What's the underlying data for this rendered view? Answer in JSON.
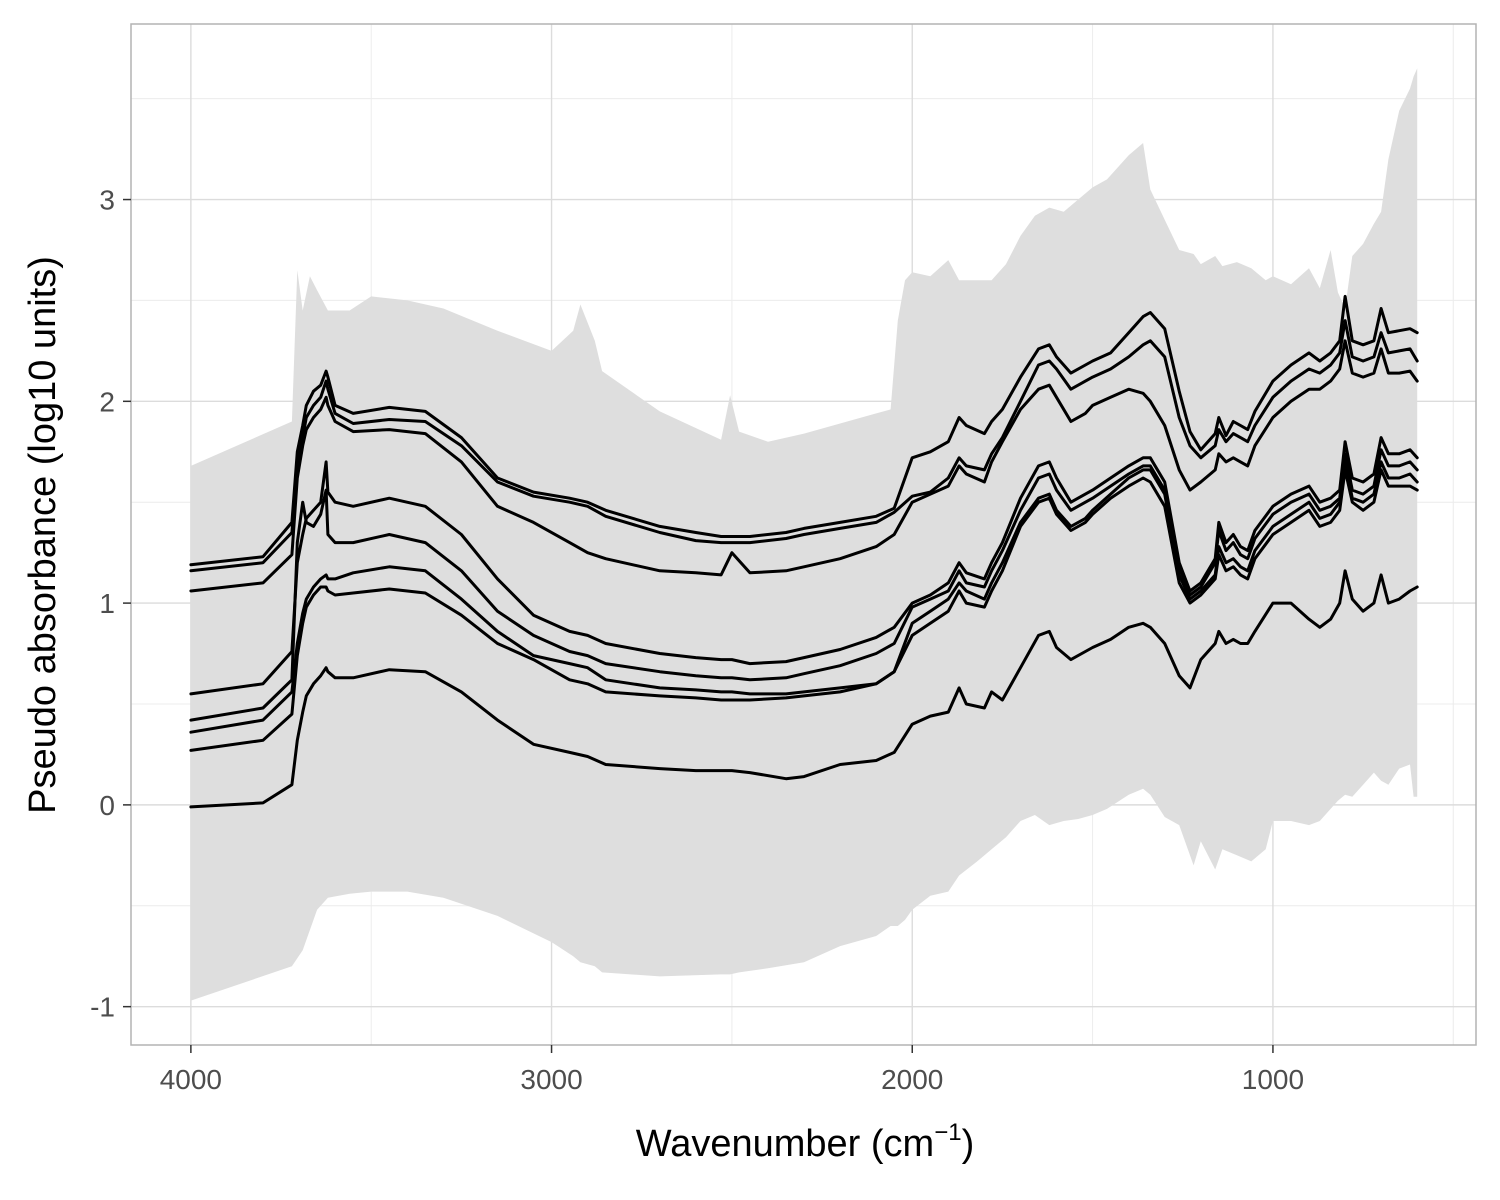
{
  "chart_data": {
    "type": "line",
    "title": "",
    "xlabel": "Wavenumber (cm",
    "xlabel_superscript": "−1",
    "xlabel_close": ")",
    "ylabel": "Pseudo absorbance (log10 units)",
    "xlim": [
      4166,
      437
    ],
    "ylim": [
      -1.19,
      3.87
    ],
    "x_reversed": true,
    "grid": true,
    "legend": "none",
    "x_ticks": [
      {
        "value": 4000,
        "label": "4000"
      },
      {
        "value": 3000,
        "label": "3000"
      },
      {
        "value": 2000,
        "label": "2000"
      },
      {
        "value": 1000,
        "label": "1000"
      }
    ],
    "y_ticks": [
      {
        "value": -1,
        "label": "-1"
      },
      {
        "value": 0,
        "label": "0"
      },
      {
        "value": 1,
        "label": "1"
      },
      {
        "value": 2,
        "label": "2"
      },
      {
        "value": 3,
        "label": "3"
      }
    ],
    "colors": {
      "band": "#dedede",
      "lines": "#000000",
      "panel_border": "#b3b3b3"
    },
    "band": {
      "x": [
        4000,
        3720,
        3705,
        3690,
        3670,
        3650,
        3620,
        3560,
        3500,
        3400,
        3300,
        3150,
        3000,
        2940,
        2920,
        2880,
        2860,
        2700,
        2530,
        2505,
        2480,
        2400,
        2300,
        2200,
        2100,
        2060,
        2040,
        2020,
        2000,
        1950,
        1900,
        1870,
        1820,
        1780,
        1740,
        1700,
        1660,
        1620,
        1580,
        1540,
        1500,
        1460,
        1400,
        1360,
        1340,
        1300,
        1260,
        1220,
        1200,
        1160,
        1140,
        1100,
        1060,
        1020,
        1000,
        950,
        900,
        870,
        840,
        820,
        800,
        780,
        750,
        720,
        700,
        680,
        650,
        620,
        610,
        600
      ],
      "upper": [
        1.68,
        1.9,
        2.65,
        2.45,
        2.62,
        2.55,
        2.45,
        2.45,
        2.52,
        2.5,
        2.46,
        2.35,
        2.25,
        2.35,
        2.48,
        2.3,
        2.15,
        1.95,
        1.81,
        2.03,
        1.85,
        1.8,
        1.84,
        1.89,
        1.94,
        1.96,
        2.4,
        2.6,
        2.64,
        2.62,
        2.7,
        2.6,
        2.6,
        2.6,
        2.68,
        2.82,
        2.92,
        2.96,
        2.94,
        3.0,
        3.06,
        3.1,
        3.22,
        3.28,
        3.05,
        2.9,
        2.75,
        2.73,
        2.68,
        2.72,
        2.67,
        2.69,
        2.66,
        2.6,
        2.62,
        2.58,
        2.66,
        2.56,
        2.75,
        2.54,
        2.46,
        2.72,
        2.78,
        2.88,
        2.94,
        3.2,
        3.44,
        3.55,
        3.61,
        3.65
      ],
      "lower": [
        -0.97,
        -0.8,
        -0.76,
        -0.72,
        -0.62,
        -0.52,
        -0.46,
        -0.44,
        -0.43,
        -0.43,
        -0.46,
        -0.55,
        -0.68,
        -0.75,
        -0.78,
        -0.8,
        -0.83,
        -0.85,
        -0.84,
        -0.84,
        -0.83,
        -0.81,
        -0.78,
        -0.7,
        -0.65,
        -0.6,
        -0.6,
        -0.57,
        -0.52,
        -0.45,
        -0.43,
        -0.35,
        -0.28,
        -0.22,
        -0.16,
        -0.08,
        -0.05,
        -0.1,
        -0.08,
        -0.07,
        -0.05,
        -0.02,
        0.05,
        0.08,
        0.05,
        -0.06,
        -0.1,
        -0.3,
        -0.18,
        -0.32,
        -0.22,
        -0.25,
        -0.28,
        -0.22,
        -0.08,
        -0.08,
        -0.1,
        -0.08,
        -0.02,
        0.02,
        0.05,
        0.04,
        0.1,
        0.16,
        0.12,
        0.1,
        0.18,
        0.2,
        0.04,
        0.04
      ]
    },
    "x": [
      4000,
      3800,
      3720,
      3705,
      3690,
      3680,
      3660,
      3640,
      3625,
      3620,
      3600,
      3550,
      3450,
      3350,
      3250,
      3150,
      3050,
      2950,
      2900,
      2850,
      2700,
      2600,
      2530,
      2500,
      2450,
      2350,
      2300,
      2200,
      2100,
      2050,
      2000,
      1950,
      1900,
      1870,
      1850,
      1800,
      1780,
      1750,
      1700,
      1650,
      1620,
      1600,
      1560,
      1520,
      1500,
      1450,
      1400,
      1360,
      1340,
      1300,
      1260,
      1230,
      1200,
      1160,
      1150,
      1130,
      1110,
      1090,
      1070,
      1050,
      1000,
      950,
      900,
      870,
      840,
      815,
      800,
      780,
      750,
      720,
      700,
      680,
      650,
      620,
      600
    ],
    "series": [
      {
        "values": [
          1.19,
          1.23,
          1.4,
          1.75,
          1.88,
          1.98,
          2.05,
          2.08,
          2.15,
          2.12,
          1.98,
          1.94,
          1.97,
          1.95,
          1.82,
          1.62,
          1.55,
          1.52,
          1.5,
          1.46,
          1.38,
          1.35,
          1.33,
          1.33,
          1.33,
          1.35,
          1.37,
          1.4,
          1.43,
          1.47,
          1.72,
          1.75,
          1.8,
          1.92,
          1.88,
          1.84,
          1.9,
          1.96,
          2.12,
          2.26,
          2.28,
          2.22,
          2.14,
          2.18,
          2.2,
          2.24,
          2.34,
          2.42,
          2.44,
          2.36,
          2.05,
          1.85,
          1.76,
          1.84,
          1.92,
          1.83,
          1.9,
          1.88,
          1.86,
          1.95,
          2.1,
          2.18,
          2.24,
          2.2,
          2.24,
          2.3,
          2.52,
          2.3,
          2.28,
          2.3,
          2.46,
          2.34,
          2.35,
          2.36,
          2.34
        ]
      },
      {
        "values": [
          1.16,
          1.2,
          1.35,
          1.68,
          1.82,
          1.92,
          1.98,
          2.02,
          2.1,
          2.06,
          1.94,
          1.89,
          1.91,
          1.9,
          1.78,
          1.6,
          1.53,
          1.5,
          1.48,
          1.43,
          1.35,
          1.31,
          1.3,
          1.3,
          1.3,
          1.32,
          1.34,
          1.37,
          1.4,
          1.45,
          1.53,
          1.55,
          1.62,
          1.72,
          1.68,
          1.66,
          1.74,
          1.82,
          2.0,
          2.18,
          2.2,
          2.16,
          2.06,
          2.1,
          2.12,
          2.16,
          2.22,
          2.28,
          2.3,
          2.22,
          1.92,
          1.78,
          1.72,
          1.78,
          1.86,
          1.8,
          1.84,
          1.82,
          1.8,
          1.88,
          2.02,
          2.1,
          2.16,
          2.14,
          2.18,
          2.24,
          2.4,
          2.22,
          2.2,
          2.22,
          2.34,
          2.24,
          2.25,
          2.26,
          2.2
        ]
      },
      {
        "values": [
          1.06,
          1.1,
          1.24,
          1.62,
          1.78,
          1.86,
          1.92,
          1.96,
          2.02,
          1.98,
          1.9,
          1.85,
          1.86,
          1.84,
          1.7,
          1.48,
          1.4,
          1.3,
          1.25,
          1.22,
          1.16,
          1.15,
          1.14,
          1.25,
          1.15,
          1.16,
          1.18,
          1.22,
          1.28,
          1.34,
          1.5,
          1.54,
          1.58,
          1.68,
          1.64,
          1.6,
          1.7,
          1.8,
          1.96,
          2.06,
          2.08,
          2.02,
          1.9,
          1.94,
          1.98,
          2.02,
          2.06,
          2.04,
          2.0,
          1.88,
          1.66,
          1.56,
          1.6,
          1.66,
          1.74,
          1.7,
          1.72,
          1.7,
          1.68,
          1.78,
          1.92,
          2.0,
          2.06,
          2.06,
          2.1,
          2.16,
          2.3,
          2.14,
          2.12,
          2.14,
          2.26,
          2.14,
          2.14,
          2.15,
          2.1
        ]
      },
      {
        "values": [
          0.55,
          0.6,
          0.76,
          1.2,
          1.34,
          1.42,
          1.46,
          1.5,
          1.7,
          1.55,
          1.5,
          1.48,
          1.52,
          1.48,
          1.34,
          1.12,
          0.94,
          0.86,
          0.84,
          0.8,
          0.75,
          0.73,
          0.72,
          0.72,
          0.7,
          0.71,
          0.73,
          0.77,
          0.83,
          0.88,
          1.0,
          1.04,
          1.1,
          1.2,
          1.15,
          1.12,
          1.2,
          1.3,
          1.52,
          1.68,
          1.7,
          1.62,
          1.5,
          1.54,
          1.56,
          1.62,
          1.68,
          1.72,
          1.72,
          1.6,
          1.2,
          1.06,
          1.1,
          1.22,
          1.4,
          1.3,
          1.34,
          1.28,
          1.26,
          1.36,
          1.48,
          1.54,
          1.58,
          1.5,
          1.52,
          1.56,
          1.8,
          1.62,
          1.6,
          1.64,
          1.82,
          1.74,
          1.74,
          1.76,
          1.72
        ]
      },
      {
        "values": [
          0.42,
          0.48,
          0.62,
          1.3,
          1.5,
          1.4,
          1.38,
          1.44,
          1.56,
          1.34,
          1.3,
          1.3,
          1.34,
          1.3,
          1.16,
          0.96,
          0.84,
          0.76,
          0.74,
          0.7,
          0.66,
          0.64,
          0.63,
          0.63,
          0.62,
          0.63,
          0.65,
          0.69,
          0.75,
          0.8,
          0.98,
          1.02,
          1.06,
          1.16,
          1.1,
          1.08,
          1.16,
          1.26,
          1.46,
          1.62,
          1.64,
          1.56,
          1.46,
          1.5,
          1.52,
          1.58,
          1.64,
          1.68,
          1.68,
          1.56,
          1.18,
          1.04,
          1.08,
          1.2,
          1.36,
          1.26,
          1.3,
          1.24,
          1.22,
          1.32,
          1.44,
          1.5,
          1.54,
          1.46,
          1.48,
          1.52,
          1.74,
          1.56,
          1.54,
          1.58,
          1.76,
          1.68,
          1.68,
          1.7,
          1.66
        ]
      },
      {
        "values": [
          0.36,
          0.42,
          0.56,
          0.8,
          0.95,
          1.02,
          1.08,
          1.12,
          1.14,
          1.12,
          1.12,
          1.15,
          1.18,
          1.16,
          1.02,
          0.86,
          0.74,
          0.7,
          0.68,
          0.62,
          0.58,
          0.57,
          0.56,
          0.56,
          0.55,
          0.55,
          0.56,
          0.58,
          0.6,
          0.66,
          0.9,
          0.96,
          1.02,
          1.1,
          1.06,
          1.02,
          1.1,
          1.2,
          1.4,
          1.52,
          1.54,
          1.46,
          1.38,
          1.42,
          1.46,
          1.54,
          1.62,
          1.66,
          1.66,
          1.54,
          1.14,
          1.02,
          1.06,
          1.14,
          1.28,
          1.2,
          1.22,
          1.18,
          1.16,
          1.26,
          1.38,
          1.44,
          1.5,
          1.42,
          1.44,
          1.5,
          1.7,
          1.52,
          1.5,
          1.54,
          1.7,
          1.62,
          1.62,
          1.64,
          1.6
        ]
      },
      {
        "values": [
          0.27,
          0.32,
          0.45,
          0.74,
          0.9,
          0.98,
          1.04,
          1.08,
          1.08,
          1.06,
          1.04,
          1.05,
          1.07,
          1.05,
          0.94,
          0.8,
          0.72,
          0.62,
          0.6,
          0.56,
          0.54,
          0.53,
          0.52,
          0.52,
          0.52,
          0.53,
          0.54,
          0.56,
          0.6,
          0.66,
          0.84,
          0.9,
          0.96,
          1.06,
          1.0,
          0.98,
          1.06,
          1.16,
          1.38,
          1.5,
          1.52,
          1.44,
          1.36,
          1.4,
          1.44,
          1.52,
          1.58,
          1.62,
          1.6,
          1.48,
          1.1,
          1.0,
          1.04,
          1.12,
          1.24,
          1.16,
          1.18,
          1.14,
          1.12,
          1.22,
          1.34,
          1.4,
          1.46,
          1.38,
          1.4,
          1.46,
          1.66,
          1.5,
          1.46,
          1.5,
          1.66,
          1.58,
          1.58,
          1.58,
          1.56
        ]
      },
      {
        "values": [
          -0.01,
          0.01,
          0.1,
          0.32,
          0.46,
          0.54,
          0.6,
          0.64,
          0.68,
          0.66,
          0.63,
          0.63,
          0.67,
          0.66,
          0.56,
          0.42,
          0.3,
          0.26,
          0.24,
          0.2,
          0.18,
          0.17,
          0.17,
          0.17,
          0.16,
          0.13,
          0.14,
          0.2,
          0.22,
          0.26,
          0.4,
          0.44,
          0.46,
          0.58,
          0.5,
          0.48,
          0.56,
          0.52,
          0.68,
          0.84,
          0.86,
          0.78,
          0.72,
          0.76,
          0.78,
          0.82,
          0.88,
          0.9,
          0.88,
          0.8,
          0.64,
          0.58,
          0.72,
          0.8,
          0.86,
          0.8,
          0.82,
          0.8,
          0.8,
          0.86,
          1.0,
          1.0,
          0.92,
          0.88,
          0.92,
          1.0,
          1.16,
          1.02,
          0.96,
          1.0,
          1.14,
          1.0,
          1.02,
          1.06,
          1.08
        ]
      }
    ]
  }
}
